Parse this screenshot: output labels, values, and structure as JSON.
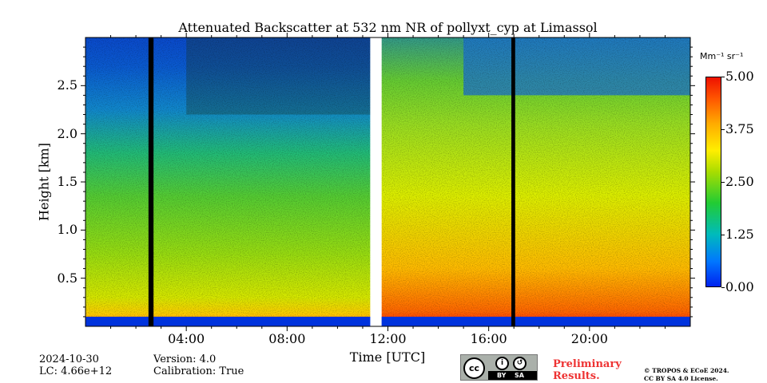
{
  "chart_data": {
    "type": "heatmap",
    "title": "Attenuated Backscatter at 532 nm NR of pollyxt_cyp at Limassol",
    "xlabel": "Time [UTC]",
    "ylabel": "Height [km]",
    "xlim_hours": [
      0,
      24
    ],
    "ylim_km": [
      0,
      3.0
    ],
    "x_ticks": [
      {
        "value": 4,
        "label": "04:00"
      },
      {
        "value": 8,
        "label": "08:00"
      },
      {
        "value": 12,
        "label": "12:00"
      },
      {
        "value": 16,
        "label": "16:00"
      },
      {
        "value": 20,
        "label": "20:00"
      }
    ],
    "y_ticks": [
      {
        "value": 0.5,
        "label": "0.5"
      },
      {
        "value": 1.0,
        "label": "1.0"
      },
      {
        "value": 1.5,
        "label": "1.5"
      },
      {
        "value": 2.0,
        "label": "2.0"
      },
      {
        "value": 2.5,
        "label": "2.5"
      }
    ],
    "colorbar": {
      "unit": "Mm⁻¹ sr⁻¹",
      "min": 0.0,
      "max": 5.0,
      "ticks": [
        {
          "value": 0.0,
          "label": "0.00"
        },
        {
          "value": 1.25,
          "label": "1.25"
        },
        {
          "value": 2.5,
          "label": "2.50"
        },
        {
          "value": 3.75,
          "label": "3.75"
        },
        {
          "value": 5.0,
          "label": "5.00"
        }
      ],
      "colormap": "jet"
    },
    "no_data_periods_hours": [
      {
        "start": 2.5,
        "end": 2.7,
        "fill": "#000000"
      },
      {
        "start": 11.3,
        "end": 11.75,
        "fill": "#ffffff"
      },
      {
        "start": 16.9,
        "end": 17.05,
        "fill": "#000000"
      }
    ]
  },
  "footer": {
    "date": "2024-10-30",
    "lc": "LC: 4.66e+12",
    "version": "Version: 4.0",
    "calibration": "Calibration: True",
    "preliminary_line1": "Preliminary",
    "preliminary_line2": "Results.",
    "copyright_line1": "© TROPOS & ECoE 2024.",
    "copyright_line2": "CC BY SA 4.0 License.",
    "license_by": "BY",
    "license_sa": "SA",
    "license_cc": "cc"
  },
  "colors": {
    "preliminary": "#ee3333",
    "surface_blue": "#0033dd"
  }
}
